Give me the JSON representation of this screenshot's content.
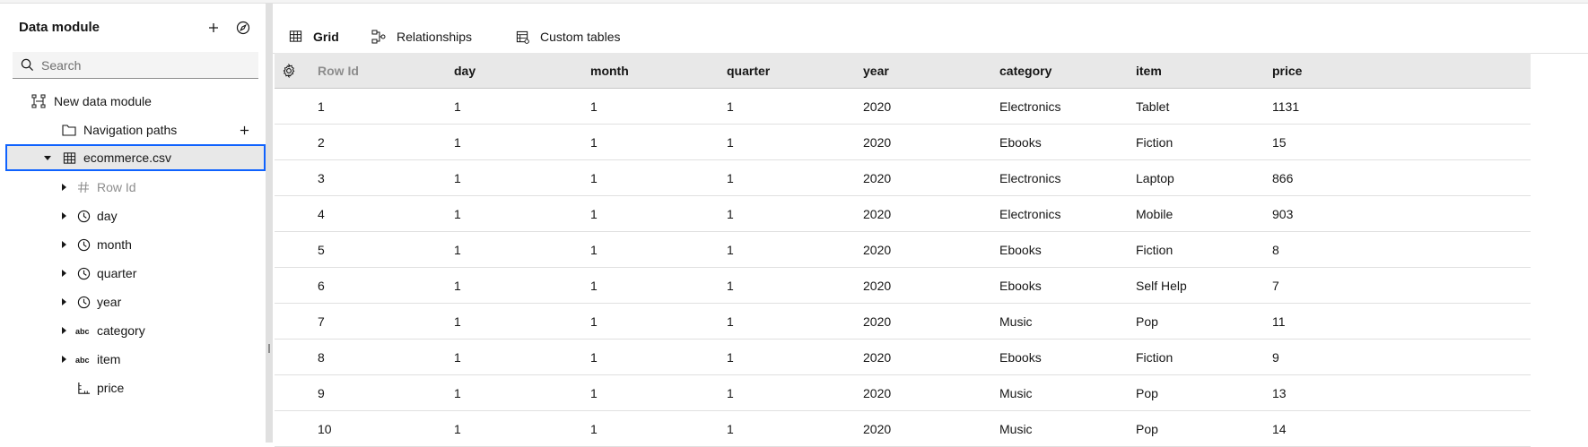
{
  "sidebar": {
    "title": "Data module",
    "search_placeholder": "Search",
    "tree": {
      "module": "New data module",
      "navigation_paths": "Navigation paths",
      "table": "ecommerce.csv",
      "columns": [
        {
          "label": "Row Id",
          "icon": "hash-icon",
          "muted": true,
          "expandable": true
        },
        {
          "label": "day",
          "icon": "clock-icon",
          "muted": false,
          "expandable": true
        },
        {
          "label": "month",
          "icon": "clock-icon",
          "muted": false,
          "expandable": true
        },
        {
          "label": "quarter",
          "icon": "clock-icon",
          "muted": false,
          "expandable": true
        },
        {
          "label": "year",
          "icon": "clock-icon",
          "muted": false,
          "expandable": true
        },
        {
          "label": "category",
          "icon": "text-abc-icon",
          "muted": false,
          "expandable": true
        },
        {
          "label": "item",
          "icon": "text-abc-icon",
          "muted": false,
          "expandable": true
        },
        {
          "label": "price",
          "icon": "measure-icon",
          "muted": false,
          "expandable": false
        }
      ]
    }
  },
  "tabs": [
    {
      "label": "Grid",
      "icon": "table-icon",
      "active": true
    },
    {
      "label": "Relationships",
      "icon": "relationships-icon",
      "active": false
    },
    {
      "label": "Custom tables",
      "icon": "custom-table-icon",
      "active": false
    }
  ],
  "grid": {
    "columns": [
      "Row Id",
      "day",
      "month",
      "quarter",
      "year",
      "category",
      "item",
      "price"
    ],
    "rows": [
      [
        "1",
        "1",
        "1",
        "1",
        "2020",
        "Electronics",
        "Tablet",
        "1131"
      ],
      [
        "2",
        "1",
        "1",
        "1",
        "2020",
        "Ebooks",
        "Fiction",
        "15"
      ],
      [
        "3",
        "1",
        "1",
        "1",
        "2020",
        "Electronics",
        "Laptop",
        "866"
      ],
      [
        "4",
        "1",
        "1",
        "1",
        "2020",
        "Electronics",
        "Mobile",
        "903"
      ],
      [
        "5",
        "1",
        "1",
        "1",
        "2020",
        "Ebooks",
        "Fiction",
        "8"
      ],
      [
        "6",
        "1",
        "1",
        "1",
        "2020",
        "Ebooks",
        "Self Help",
        "7"
      ],
      [
        "7",
        "1",
        "1",
        "1",
        "2020",
        "Music",
        "Pop",
        "11"
      ],
      [
        "8",
        "1",
        "1",
        "1",
        "2020",
        "Ebooks",
        "Fiction",
        "9"
      ],
      [
        "9",
        "1",
        "1",
        "1",
        "2020",
        "Music",
        "Pop",
        "13"
      ],
      [
        "10",
        "1",
        "1",
        "1",
        "2020",
        "Music",
        "Pop",
        "14"
      ]
    ]
  },
  "colors": {
    "accent": "#0f62fe",
    "header_bg": "#e8e8e8",
    "muted_text": "#8d8d8d"
  }
}
